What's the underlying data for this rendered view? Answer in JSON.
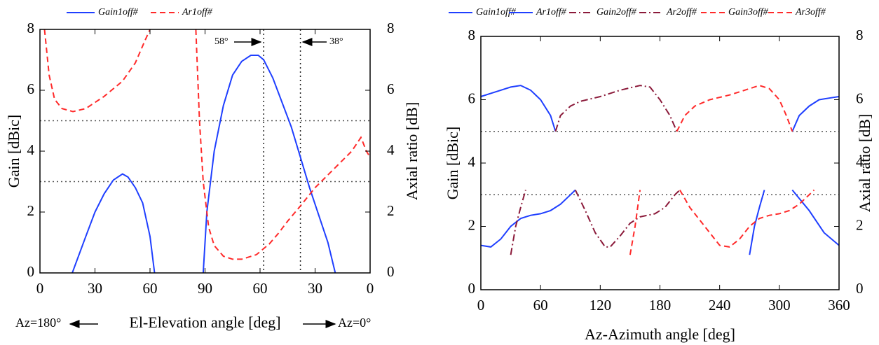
{
  "chart_data": [
    {
      "type": "line",
      "xlabel": "El-Elevation angle [deg]",
      "ylabel": "Gain [dBic]",
      "y2label": "Axial ratio [dB]",
      "xlim": [
        0,
        180
      ],
      "xticks": [
        0,
        30,
        60,
        90,
        {
          "value": 120,
          "label": "60"
        },
        {
          "value": 150,
          "label": "30"
        },
        {
          "value": 180,
          "label": "0"
        }
      ],
      "ylim": [
        0,
        8
      ],
      "yticks": [
        0,
        2,
        4,
        6,
        8
      ],
      "y2lim": [
        0,
        8
      ],
      "y2ticks": [
        0,
        2,
        4,
        6,
        8
      ],
      "hlines": [
        3,
        5
      ],
      "vlines": [
        122,
        142
      ],
      "annotations": [
        "Az=180°",
        "Az=0°",
        "58°",
        "38°"
      ],
      "series": [
        {
          "name": "Gain1off#",
          "color": "#1f3fff",
          "style": "solid",
          "x": [
            17.6,
            25,
            30,
            35,
            40,
            45,
            48,
            52,
            56,
            60,
            62.5,
            null,
            89,
            91,
            95,
            100,
            105,
            110,
            115,
            119,
            122,
            127,
            132,
            137,
            142,
            147,
            152,
            157,
            161
          ],
          "values": [
            0,
            1.2,
            2.0,
            2.6,
            3.05,
            3.25,
            3.15,
            2.8,
            2.3,
            1.2,
            0,
            null,
            0,
            2.0,
            4.0,
            5.5,
            6.5,
            6.95,
            7.15,
            7.15,
            7.0,
            6.4,
            5.6,
            4.8,
            3.8,
            2.8,
            1.9,
            1.0,
            0
          ]
        },
        {
          "name": "Ar1off#",
          "color": "#ff2a2a",
          "style": "dashed",
          "axis": "y2",
          "x": [
            2.5,
            5,
            8,
            12,
            18,
            25,
            35,
            45,
            52,
            57,
            60,
            null,
            85,
            87,
            89,
            92,
            95,
            100,
            105,
            110,
            118,
            125,
            130,
            135,
            142,
            150,
            160,
            170,
            175,
            178,
            180
          ],
          "values": [
            8,
            6.5,
            5.7,
            5.4,
            5.3,
            5.4,
            5.8,
            6.3,
            6.9,
            7.6,
            8,
            null,
            8,
            5,
            3,
            1.5,
            0.9,
            0.55,
            0.45,
            0.45,
            0.6,
            0.95,
            1.3,
            1.7,
            2.2,
            2.8,
            3.4,
            4.0,
            4.45,
            4.0,
            3.8
          ]
        }
      ]
    },
    {
      "type": "line",
      "xlabel": "Az-Azimuth angle [deg]",
      "ylabel": "Gain [dBic]",
      "y2label": "Axial ratio [dB]",
      "xlim": [
        0,
        360
      ],
      "xticks": [
        0,
        60,
        120,
        180,
        240,
        300,
        360
      ],
      "ylim": [
        0,
        8
      ],
      "yticks": [
        0,
        2,
        4,
        6,
        8
      ],
      "y2lim": [
        0,
        8
      ],
      "y2ticks": [
        0,
        2,
        4,
        6,
        8
      ],
      "hlines": [
        3,
        5
      ],
      "series": [
        {
          "name": "Gain1off#",
          "color": "#1f3fff",
          "style": "solid",
          "x": [
            0,
            10,
            20,
            30,
            40,
            50,
            60,
            70,
            75,
            null,
            313,
            320,
            330,
            340,
            350,
            360
          ],
          "values": [
            6.1,
            6.2,
            6.3,
            6.4,
            6.45,
            6.3,
            6.0,
            5.5,
            5.0,
            null,
            5.0,
            5.5,
            5.8,
            6.0,
            6.05,
            6.1
          ]
        },
        {
          "name": "Ar1off#",
          "color": "#1f3fff",
          "style": "solid",
          "axis": "y2",
          "x": [
            0,
            10,
            20,
            30,
            40,
            50,
            60,
            70,
            80,
            90,
            95,
            null,
            270,
            275,
            280,
            285,
            null,
            313,
            330,
            345,
            360
          ],
          "values": [
            1.4,
            1.35,
            1.6,
            2.0,
            2.25,
            2.35,
            2.4,
            2.5,
            2.7,
            3.0,
            3.15,
            null,
            1.1,
            2.0,
            2.6,
            3.15,
            null,
            3.15,
            2.5,
            1.8,
            1.4
          ]
        },
        {
          "name": "Gain2off#",
          "color": "#8b1a3a",
          "style": "dashdot",
          "x": [
            75,
            80,
            90,
            100,
            120,
            140,
            160,
            170,
            180,
            190,
            197
          ],
          "values": [
            5.0,
            5.5,
            5.8,
            5.95,
            6.1,
            6.3,
            6.45,
            6.4,
            6.0,
            5.5,
            5.0
          ]
        },
        {
          "name": "Ar2off#",
          "color": "#8b1a3a",
          "style": "dashdot",
          "axis": "y2",
          "x": [
            30,
            35,
            40,
            45,
            null,
            95,
            105,
            115,
            125,
            130,
            140,
            150,
            160,
            175,
            185,
            195,
            200
          ],
          "values": [
            1.1,
            2.0,
            2.6,
            3.15,
            null,
            3.15,
            2.5,
            1.8,
            1.35,
            1.35,
            1.7,
            2.1,
            2.3,
            2.4,
            2.6,
            3.0,
            3.15
          ]
        },
        {
          "name": "Gain3off#",
          "color": "#ff2a2a",
          "style": "dashed",
          "x": [
            197,
            205,
            215,
            230,
            250,
            270,
            280,
            290,
            300,
            307,
            313
          ],
          "values": [
            5.0,
            5.5,
            5.8,
            6.0,
            6.15,
            6.35,
            6.45,
            6.35,
            6.0,
            5.5,
            5.0
          ]
        },
        {
          "name": "Ar3off#",
          "color": "#ff2a2a",
          "style": "dashed",
          "axis": "y2",
          "x": [
            150,
            155,
            160,
            null,
            200,
            210,
            225,
            240,
            250,
            260,
            270,
            280,
            290,
            300,
            310,
            320,
            330,
            335
          ],
          "values": [
            1.1,
            2.0,
            3.15,
            null,
            3.15,
            2.6,
            2.0,
            1.4,
            1.35,
            1.6,
            2.0,
            2.25,
            2.35,
            2.4,
            2.5,
            2.7,
            3.0,
            3.15
          ]
        }
      ]
    }
  ]
}
